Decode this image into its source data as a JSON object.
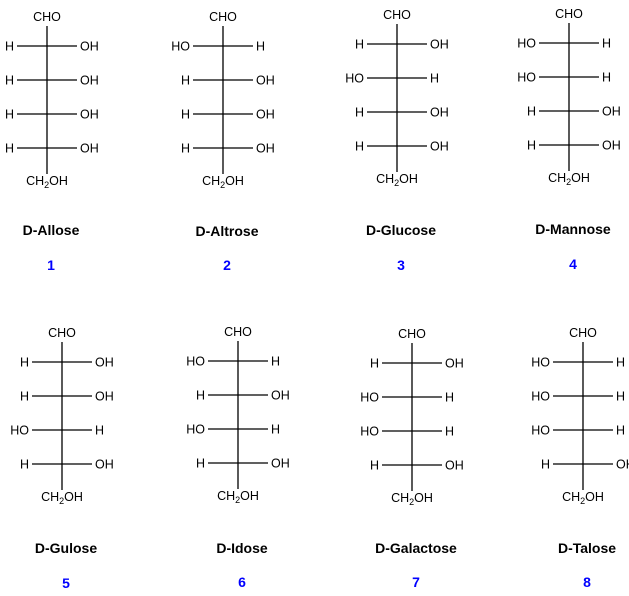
{
  "top_label": "CHO",
  "bottom_label": "CH2OH",
  "molecules": [
    {
      "name": "D-Allose",
      "number": "1",
      "rows": [
        [
          "H",
          "OH"
        ],
        [
          "H",
          "OH"
        ],
        [
          "H",
          "OH"
        ],
        [
          "H",
          "OH"
        ]
      ]
    },
    {
      "name": "D-Altrose",
      "number": "2",
      "rows": [
        [
          "HO",
          "H"
        ],
        [
          "H",
          "OH"
        ],
        [
          "H",
          "OH"
        ],
        [
          "H",
          "OH"
        ]
      ]
    },
    {
      "name": "D-Glucose",
      "number": "3",
      "rows": [
        [
          "H",
          "OH"
        ],
        [
          "HO",
          "H"
        ],
        [
          "H",
          "OH"
        ],
        [
          "H",
          "OH"
        ]
      ]
    },
    {
      "name": "D-Mannose",
      "number": "4",
      "rows": [
        [
          "HO",
          "H"
        ],
        [
          "HO",
          "H"
        ],
        [
          "H",
          "OH"
        ],
        [
          "H",
          "OH"
        ]
      ]
    },
    {
      "name": "D-Gulose",
      "number": "5",
      "rows": [
        [
          "H",
          "OH"
        ],
        [
          "H",
          "OH"
        ],
        [
          "HO",
          "H"
        ],
        [
          "H",
          "OH"
        ]
      ]
    },
    {
      "name": "D-Idose",
      "number": "6",
      "rows": [
        [
          "HO",
          "H"
        ],
        [
          "H",
          "OH"
        ],
        [
          "HO",
          "H"
        ],
        [
          "H",
          "OH"
        ]
      ]
    },
    {
      "name": "D-Galactose",
      "number": "7",
      "rows": [
        [
          "H",
          "OH"
        ],
        [
          "HO",
          "H"
        ],
        [
          "HO",
          "H"
        ],
        [
          "H",
          "OH"
        ]
      ]
    },
    {
      "name": "D-Talose",
      "number": "8",
      "rows": [
        [
          "HO",
          "H"
        ],
        [
          "HO",
          "H"
        ],
        [
          "HO",
          "H"
        ],
        [
          "H",
          "OH"
        ]
      ]
    }
  ]
}
